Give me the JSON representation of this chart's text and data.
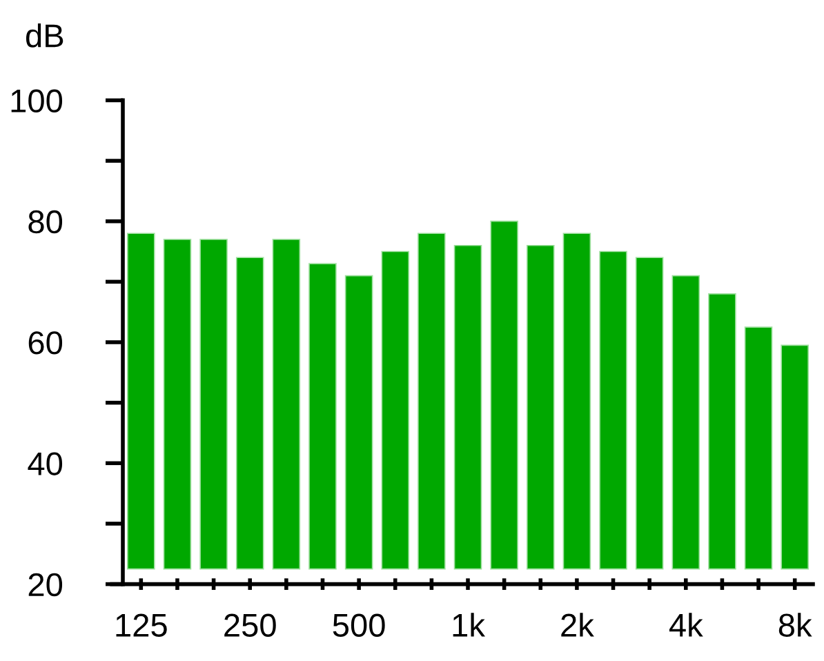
{
  "chart_data": {
    "type": "bar",
    "ylabel": "dB",
    "categories": [
      "125",
      null,
      null,
      "250",
      null,
      null,
      "500",
      null,
      null,
      "1k",
      null,
      null,
      "2k",
      null,
      null,
      "4k",
      null,
      null,
      "8k"
    ],
    "base": [
      22.5,
      22.5,
      22.5,
      22.5,
      22.5,
      22.5,
      22.5,
      22.5,
      22.5,
      22.5,
      22.5,
      22.5,
      22.5,
      22.5,
      22.5,
      22.5,
      22.5,
      22.5,
      22.5
    ],
    "values": [
      55.5,
      54.5,
      54.5,
      51.5,
      54.5,
      50.5,
      48.5,
      52.5,
      55.5,
      53.5,
      57.5,
      53.5,
      55.5,
      52.5,
      51.5,
      48.5,
      45.5,
      40,
      37
    ],
    "color": "#00a800",
    "ylim": [
      20,
      100
    ],
    "yticks": [
      20,
      {
        "value": 30,
        "label": null
      },
      40,
      {
        "value": 50,
        "label": null
      },
      60,
      {
        "value": 70,
        "label": null
      },
      80,
      {
        "value": 90,
        "label": null
      },
      100
    ],
    "grid": false,
    "legend": false
  }
}
